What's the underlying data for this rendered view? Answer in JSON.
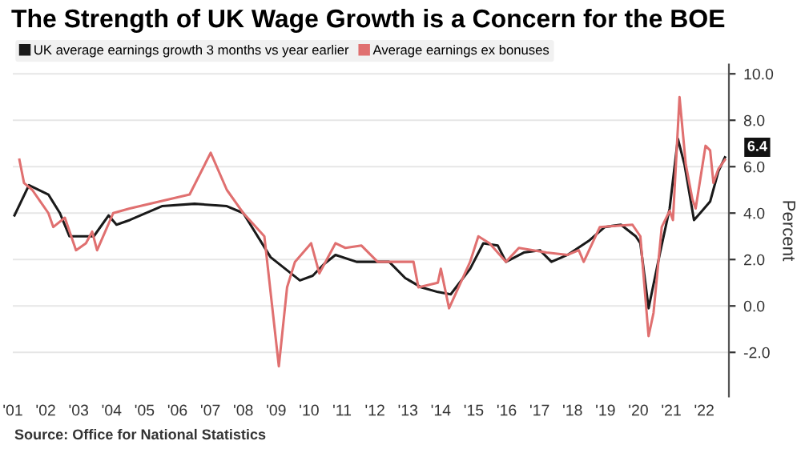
{
  "chart_data": {
    "type": "line",
    "title": "The Strength of UK Wage Growth is a Concern for the BOE",
    "ylabel": "Percent",
    "series": [
      {
        "name": "UK average earnings growth 3 months vs year earlier",
        "color": "#1a1a1a",
        "x": [
          2001.05,
          2001.49,
          2002.08,
          2002.43,
          2002.72,
          2003.46,
          2003.91,
          2004.15,
          2004.55,
          2005.53,
          2006.52,
          2007.5,
          2008.0,
          2008.83,
          2009.72,
          2010.11,
          2010.45,
          2010.8,
          2011.44,
          2012.43,
          2012.92,
          2013.41,
          2013.91,
          2014.3,
          2014.89,
          2015.29,
          2015.73,
          2015.98,
          2016.52,
          2017.01,
          2017.36,
          2017.85,
          2018.49,
          2018.98,
          2019.47,
          2019.92,
          2020.06,
          2020.31,
          2020.66,
          2020.95,
          2021.2,
          2021.4,
          2021.69,
          2021.94,
          2022.18,
          2022.43,
          2022.63
        ],
        "values": [
          3.9,
          5.2,
          4.8,
          4.0,
          3.0,
          3.0,
          3.9,
          3.5,
          3.7,
          4.3,
          4.4,
          4.3,
          4.0,
          2.1,
          1.1,
          1.3,
          1.8,
          2.2,
          1.9,
          1.9,
          1.2,
          0.8,
          0.6,
          0.5,
          1.6,
          2.7,
          2.6,
          1.9,
          2.3,
          2.4,
          1.9,
          2.2,
          2.8,
          3.4,
          3.5,
          3.0,
          2.7,
          -0.1,
          2.3,
          4.2,
          7.2,
          6.1,
          3.7,
          4.1,
          4.5,
          5.8,
          6.4
        ]
      },
      {
        "name": "Average earnings ex bonuses",
        "color": "#e07070",
        "x": [
          2001.2,
          2001.34,
          2001.59,
          2002.08,
          2002.23,
          2002.58,
          2002.92,
          2003.22,
          2003.41,
          2003.56,
          2004.05,
          2004.55,
          2006.37,
          2007.01,
          2007.5,
          2008.0,
          2008.64,
          2009.08,
          2009.33,
          2009.57,
          2010.06,
          2010.31,
          2010.8,
          2011.1,
          2011.59,
          2012.08,
          2013.17,
          2013.32,
          2013.91,
          2014.0,
          2014.25,
          2014.89,
          2015.14,
          2015.48,
          2015.98,
          2016.37,
          2017.21,
          2017.85,
          2018.19,
          2018.34,
          2018.83,
          2019.82,
          2020.06,
          2020.31,
          2020.46,
          2020.71,
          2020.95,
          2021.05,
          2021.25,
          2021.44,
          2021.64,
          2021.74,
          2022.04,
          2022.18,
          2022.28,
          2022.43,
          2022.63
        ],
        "values": [
          6.3,
          5.3,
          5.0,
          4.0,
          3.4,
          3.8,
          2.4,
          2.7,
          3.2,
          2.4,
          4.0,
          4.2,
          4.8,
          6.6,
          5.0,
          4.0,
          3.0,
          -2.6,
          0.8,
          1.9,
          2.7,
          1.4,
          2.7,
          2.5,
          2.6,
          1.9,
          1.9,
          0.8,
          1.0,
          1.6,
          -0.1,
          1.9,
          3.0,
          2.7,
          1.9,
          2.5,
          2.3,
          2.2,
          2.4,
          1.9,
          3.4,
          3.5,
          3.0,
          -1.3,
          -0.3,
          3.4,
          4.1,
          3.7,
          9.0,
          6.1,
          4.6,
          4.2,
          6.9,
          6.7,
          5.3,
          5.9,
          6.3
        ]
      }
    ],
    "xlim": [
      2001.0,
      2022.75
    ],
    "xticks": [
      {
        "value": 2001,
        "label": "'01"
      },
      {
        "value": 2002,
        "label": "'02"
      },
      {
        "value": 2003,
        "label": "'03"
      },
      {
        "value": 2004,
        "label": "'04"
      },
      {
        "value": 2005,
        "label": "'05"
      },
      {
        "value": 2006,
        "label": "'06"
      },
      {
        "value": 2007,
        "label": "'07"
      },
      {
        "value": 2008,
        "label": "'08"
      },
      {
        "value": 2009,
        "label": "'09"
      },
      {
        "value": 2010,
        "label": "'10"
      },
      {
        "value": 2011,
        "label": "'11"
      },
      {
        "value": 2012,
        "label": "'12"
      },
      {
        "value": 2013,
        "label": "'13"
      },
      {
        "value": 2014,
        "label": "'14"
      },
      {
        "value": 2015,
        "label": "'15"
      },
      {
        "value": 2016,
        "label": "'16"
      },
      {
        "value": 2017,
        "label": "'17"
      },
      {
        "value": 2018,
        "label": "'18"
      },
      {
        "value": 2019,
        "label": "'19"
      },
      {
        "value": 2020,
        "label": "'20"
      },
      {
        "value": 2021,
        "label": "'21"
      },
      {
        "value": 2022,
        "label": "'22"
      }
    ],
    "ylim": [
      -3.9,
      10.4
    ],
    "yticks": [
      {
        "value": -2,
        "label": "-2.0"
      },
      {
        "value": 0,
        "label": "0.0"
      },
      {
        "value": 2,
        "label": "2.0"
      },
      {
        "value": 4,
        "label": "4.0"
      },
      {
        "value": 6,
        "label": "6.0"
      },
      {
        "value": 8,
        "label": "8.0"
      },
      {
        "value": 10,
        "label": "10.0"
      }
    ],
    "grid": "y",
    "legend": "top left",
    "marker": "none",
    "line_style": "solid",
    "annotations": [
      {
        "text": "6.4",
        "x": 2022.63,
        "y": 6.4
      },
      "Source: Office for National Statistics"
    ]
  }
}
